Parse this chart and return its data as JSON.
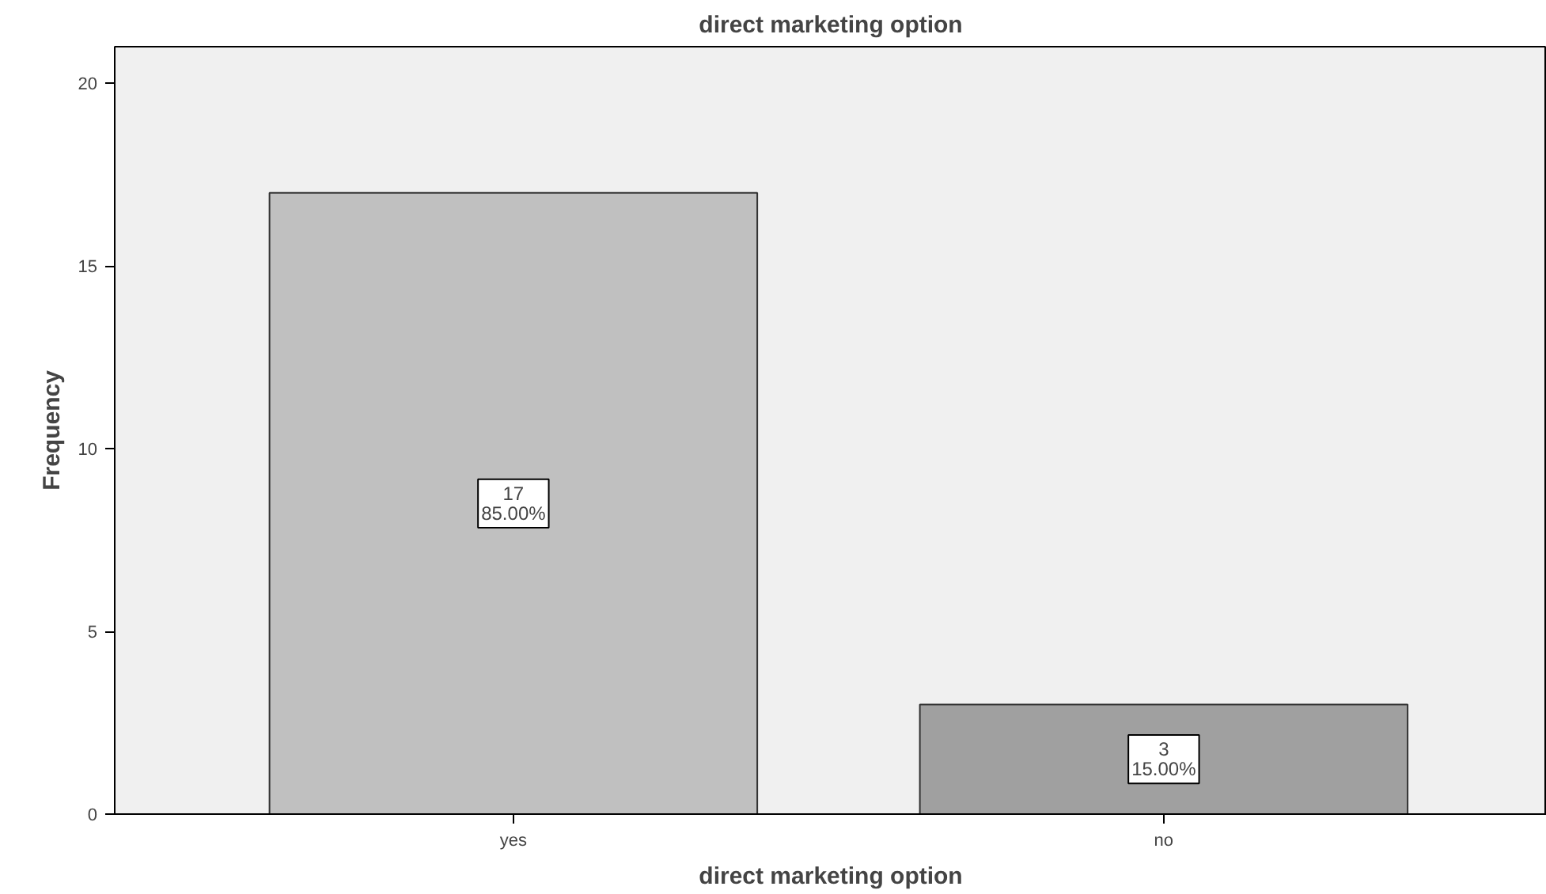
{
  "chart_data": {
    "type": "bar",
    "title": "direct marketing option",
    "xlabel": "direct marketing option",
    "ylabel": "Frequency",
    "categories": [
      "yes",
      "no"
    ],
    "values": [
      17,
      3
    ],
    "colors": [
      "#c0c0c0",
      "#a0a0a0"
    ],
    "value_labels": [
      "17\n85.00%",
      "3\n15.00%"
    ],
    "ylim": [
      0,
      21
    ],
    "yticks": [
      0,
      5,
      10,
      15,
      20
    ],
    "grid": false
  }
}
